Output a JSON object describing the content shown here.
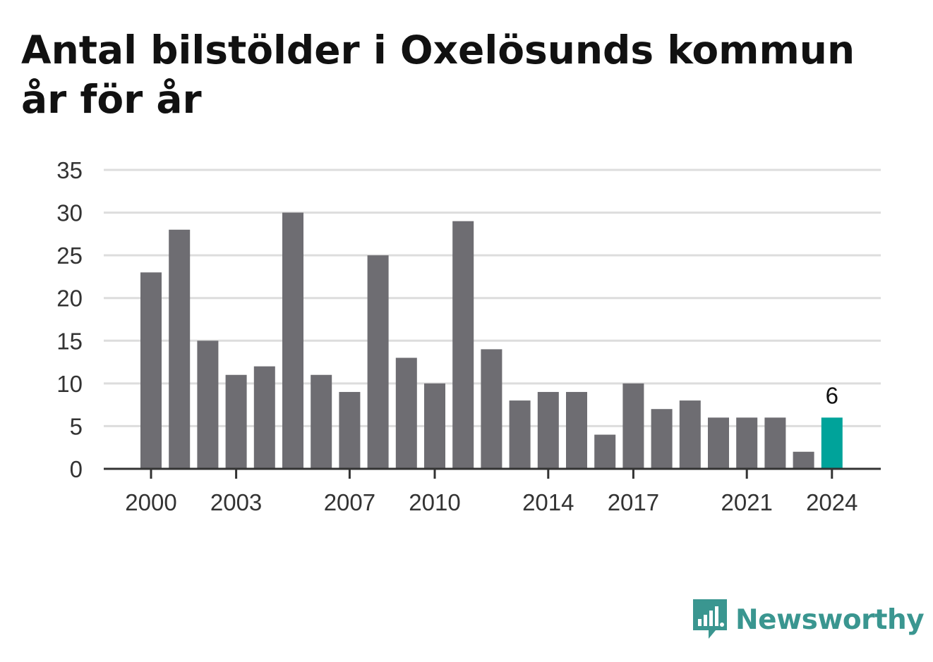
{
  "title": "Antal bilstölder i Oxelösunds kommun år för år",
  "brand": {
    "name": "Newsworthy",
    "logo_icon": "newsworthy-logo-icon"
  },
  "colors": {
    "bar": "#6e6d72",
    "highlight": "#00a39a",
    "grid": "#dddddd",
    "axis": "#333333",
    "brand": "#3a9690"
  },
  "chart_data": {
    "type": "bar",
    "title": "Antal bilstölder i Oxelösunds kommun år för år",
    "x": [
      2000,
      2001,
      2002,
      2003,
      2004,
      2005,
      2006,
      2007,
      2008,
      2009,
      2010,
      2011,
      2012,
      2013,
      2014,
      2015,
      2016,
      2017,
      2018,
      2019,
      2020,
      2021,
      2022,
      2023,
      2024
    ],
    "values": [
      23,
      28,
      15,
      11,
      12,
      30,
      11,
      9,
      25,
      13,
      10,
      29,
      14,
      8,
      9,
      9,
      4,
      10,
      7,
      8,
      6,
      6,
      6,
      2,
      6
    ],
    "xticks": [
      "2000",
      "2003",
      "2007",
      "2010",
      "2014",
      "2017",
      "2021",
      "2024"
    ],
    "yticks": [
      0,
      5,
      10,
      15,
      20,
      25,
      30,
      35
    ],
    "ylim": [
      0,
      35
    ],
    "highlight": {
      "x": 2024,
      "label": "6"
    },
    "grid": true,
    "xlabel": "",
    "ylabel": ""
  }
}
